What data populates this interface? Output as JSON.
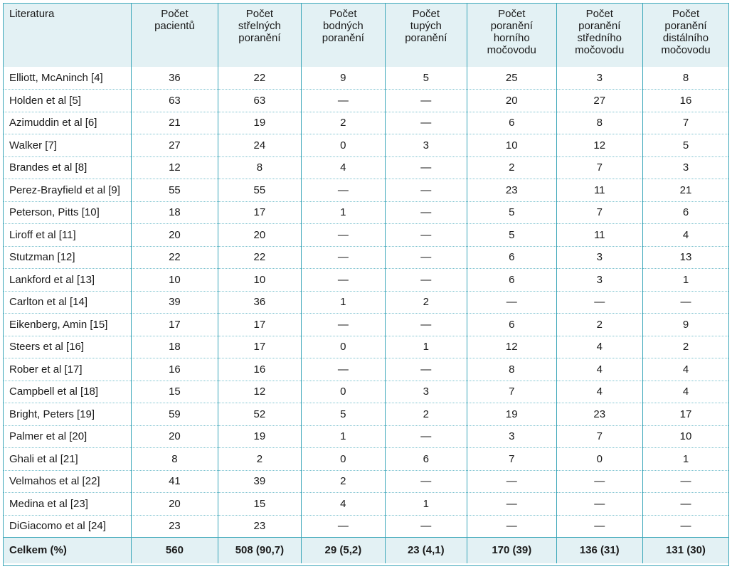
{
  "table": {
    "headers": [
      "Literatura",
      "Počet\npacientů",
      "Počet\nstřelných\nporanění",
      "Počet\nbodných\nporanění",
      "Počet\ntupých\nporanění",
      "Počet\nporanění\nhorního\nmočovodu",
      "Počet\nporanění\nstředního\nmočovodu",
      "Počet\nporanění\ndistálního\nmočovodu"
    ],
    "rows": [
      [
        "Elliott, McAninch [4]",
        "36",
        "22",
        "9",
        "5",
        "25",
        "3",
        "8"
      ],
      [
        "Holden et al [5]",
        "63",
        "63",
        "—",
        "—",
        "20",
        "27",
        "16"
      ],
      [
        "Azimuddin et al [6]",
        "21",
        "19",
        "2",
        "—",
        "6",
        "8",
        "7"
      ],
      [
        "Walker [7]",
        "27",
        "24",
        "0",
        "3",
        "10",
        "12",
        "5"
      ],
      [
        "Brandes et al [8]",
        "12",
        "8",
        "4",
        "—",
        "2",
        "7",
        "3"
      ],
      [
        "Perez-Brayfield et al [9]",
        "55",
        "55",
        "—",
        "—",
        "23",
        "11",
        "21"
      ],
      [
        "Peterson, Pitts [10]",
        "18",
        "17",
        "1",
        "—",
        "5",
        "7",
        "6"
      ],
      [
        "Liroff et al [11]",
        "20",
        "20",
        "—",
        "—",
        "5",
        "11",
        "4"
      ],
      [
        "Stutzman [12]",
        "22",
        "22",
        "—",
        "—",
        "6",
        "3",
        "13"
      ],
      [
        "Lankford et al [13]",
        "10",
        "10",
        "—",
        "—",
        "6",
        "3",
        "1"
      ],
      [
        "Carlton et al [14]",
        "39",
        "36",
        "1",
        "2",
        "—",
        "—",
        "—"
      ],
      [
        "Eikenberg, Amin [15]",
        "17",
        "17",
        "—",
        "—",
        "6",
        "2",
        "9"
      ],
      [
        "Steers et al [16]",
        "18",
        "17",
        "0",
        "1",
        "12",
        "4",
        "2"
      ],
      [
        "Rober et al [17]",
        "16",
        "16",
        "—",
        "—",
        "8",
        "4",
        "4"
      ],
      [
        "Campbell et al [18]",
        "15",
        "12",
        "0",
        "3",
        "7",
        "4",
        "4"
      ],
      [
        "Bright, Peters [19]",
        "59",
        "52",
        "5",
        "2",
        "19",
        "23",
        "17"
      ],
      [
        "Palmer et al [20]",
        "20",
        "19",
        "1",
        "—",
        "3",
        "7",
        "10"
      ],
      [
        "Ghali et al [21]",
        "8",
        "2",
        "0",
        "6",
        "7",
        "0",
        "1"
      ],
      [
        "Velmahos et al [22]",
        "41",
        "39",
        "2",
        "—",
        "—",
        "—",
        "—"
      ],
      [
        "Medina et al [23]",
        "20",
        "15",
        "4",
        "1",
        "—",
        "—",
        "—"
      ],
      [
        "DiGiacomo et al [24]",
        "23",
        "23",
        "—",
        "—",
        "—",
        "—",
        "—"
      ]
    ],
    "footer": [
      "Celkem (%)",
      "560",
      "508 (90,7)",
      "29 (5,2)",
      "23 (4,1)",
      "170 (39)",
      "136 (31)",
      "131 (30)"
    ]
  },
  "colors": {
    "border": "#3aa6b9",
    "header_bg": "#e3f1f4",
    "row_separator": "#7fc3d0"
  }
}
